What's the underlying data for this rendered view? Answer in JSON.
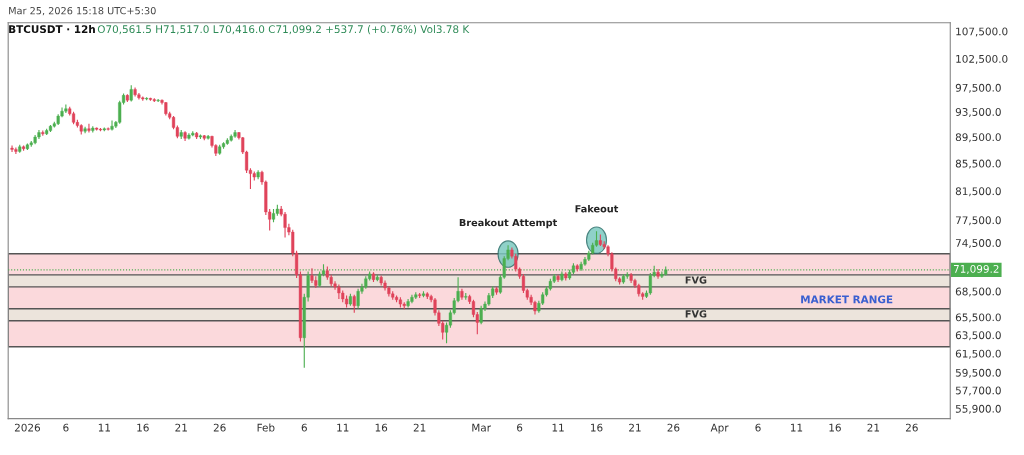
{
  "chart_data": {
    "type": "candlestick",
    "title": "BTCUSDT · 12h",
    "subtitle": "O70,561.5 H71,517.0 L70,416.0 C71,099.2 +537.7 (+0.76%) Vol3.78 K",
    "annotations": [
      "Mar 25, 2026 15:18 UTC+5:30",
      {
        "text": "Breakout Attempt",
        "x": "2026-03-04T12:00",
        "y": 74200
      },
      {
        "text": "Fakeout",
        "x": "2026-03-16T00:00",
        "y": 76000
      }
    ],
    "x": [
      "2025-12-30T00:00",
      "2025-12-30T12:00",
      "2025-12-31T00:00",
      "2025-12-31T12:00",
      "2026-01-01T00:00",
      "2026-01-01T12:00",
      "2026-01-02T00:00",
      "2026-01-02T12:00",
      "2026-01-03T00:00",
      "2026-01-03T12:00",
      "2026-01-04T00:00",
      "2026-01-04T12:00",
      "2026-01-05T00:00",
      "2026-01-05T12:00",
      "2026-01-06T00:00",
      "2026-01-06T12:00",
      "2026-01-07T00:00",
      "2026-01-07T12:00",
      "2026-01-08T00:00",
      "2026-01-08T12:00",
      "2026-01-09T00:00",
      "2026-01-09T12:00",
      "2026-01-10T00:00",
      "2026-01-10T12:00",
      "2026-01-11T00:00",
      "2026-01-11T12:00",
      "2026-01-12T00:00",
      "2026-01-12T12:00",
      "2026-01-13T00:00",
      "2026-01-13T12:00",
      "2026-01-14T00:00",
      "2026-01-14T12:00",
      "2026-01-15T00:00",
      "2026-01-15T12:00",
      "2026-01-16T00:00",
      "2026-01-16T12:00",
      "2026-01-17T00:00",
      "2026-01-17T12:00",
      "2026-01-18T00:00",
      "2026-01-18T12:00",
      "2026-01-19T00:00",
      "2026-01-19T12:00",
      "2026-01-20T00:00",
      "2026-01-20T12:00",
      "2026-01-21T00:00",
      "2026-01-21T12:00",
      "2026-01-22T00:00",
      "2026-01-22T12:00",
      "2026-01-23T00:00",
      "2026-01-23T12:00",
      "2026-01-24T00:00",
      "2026-01-24T12:00",
      "2026-01-25T00:00",
      "2026-01-25T12:00",
      "2026-01-26T00:00",
      "2026-01-26T12:00",
      "2026-01-27T00:00",
      "2026-01-27T12:00",
      "2026-01-28T00:00",
      "2026-01-28T12:00",
      "2026-01-29T00:00",
      "2026-01-29T12:00",
      "2026-01-30T00:00",
      "2026-01-30T12:00",
      "2026-01-31T00:00",
      "2026-01-31T12:00",
      "2026-02-01T00:00",
      "2026-02-01T12:00",
      "2026-02-02T00:00",
      "2026-02-02T12:00",
      "2026-02-03T00:00",
      "2026-02-03T12:00",
      "2026-02-04T00:00",
      "2026-02-04T12:00",
      "2026-02-05T00:00",
      "2026-02-05T12:00",
      "2026-02-06T00:00",
      "2026-02-06T12:00",
      "2026-02-07T00:00",
      "2026-02-07T12:00",
      "2026-02-08T00:00",
      "2026-02-08T12:00",
      "2026-02-09T00:00",
      "2026-02-09T12:00",
      "2026-02-10T00:00",
      "2026-02-10T12:00",
      "2026-02-11T00:00",
      "2026-02-11T12:00",
      "2026-02-12T00:00",
      "2026-02-12T12:00",
      "2026-02-13T00:00",
      "2026-02-13T12:00",
      "2026-02-14T00:00",
      "2026-02-14T12:00",
      "2026-02-15T00:00",
      "2026-02-15T12:00",
      "2026-02-16T00:00",
      "2026-02-16T12:00",
      "2026-02-17T00:00",
      "2026-02-17T12:00",
      "2026-02-18T00:00",
      "2026-02-18T12:00",
      "2026-02-19T00:00",
      "2026-02-19T12:00",
      "2026-02-20T00:00",
      "2026-02-20T12:00",
      "2026-02-21T00:00",
      "2026-02-21T12:00",
      "2026-02-22T00:00",
      "2026-02-22T12:00",
      "2026-02-23T00:00",
      "2026-02-23T12:00",
      "2026-02-24T00:00",
      "2026-02-24T12:00",
      "2026-02-25T00:00",
      "2026-02-25T12:00",
      "2026-02-26T00:00",
      "2026-02-26T12:00",
      "2026-02-27T00:00",
      "2026-02-27T12:00",
      "2026-02-28T00:00",
      "2026-02-28T12:00",
      "2026-03-01T00:00",
      "2026-03-01T12:00",
      "2026-03-02T00:00",
      "2026-03-02T12:00",
      "2026-03-03T00:00",
      "2026-03-03T12:00",
      "2026-03-04T00:00",
      "2026-03-04T12:00",
      "2026-03-05T00:00",
      "2026-03-05T12:00",
      "2026-03-06T00:00",
      "2026-03-06T12:00",
      "2026-03-07T00:00",
      "2026-03-07T12:00",
      "2026-03-08T00:00",
      "2026-03-08T12:00",
      "2026-03-09T00:00",
      "2026-03-09T12:00",
      "2026-03-10T00:00",
      "2026-03-10T12:00",
      "2026-03-11T00:00",
      "2026-03-11T12:00",
      "2026-03-12T00:00",
      "2026-03-12T12:00",
      "2026-03-13T00:00",
      "2026-03-13T12:00",
      "2026-03-14T00:00",
      "2026-03-14T12:00",
      "2026-03-15T00:00",
      "2026-03-15T12:00",
      "2026-03-16T00:00",
      "2026-03-16T12:00",
      "2026-03-17T00:00",
      "2026-03-17T12:00",
      "2026-03-18T00:00",
      "2026-03-18T12:00",
      "2026-03-19T00:00",
      "2026-03-19T12:00",
      "2026-03-20T00:00",
      "2026-03-20T12:00",
      "2026-03-21T00:00",
      "2026-03-21T12:00",
      "2026-03-22T00:00",
      "2026-03-22T12:00",
      "2026-03-23T00:00",
      "2026-03-23T12:00",
      "2026-03-24T00:00",
      "2026-03-24T12:00",
      "2026-03-25T00:00"
    ],
    "ohlc": [
      [
        87800,
        88200,
        87200,
        87600
      ],
      [
        87600,
        87900,
        86900,
        87300
      ],
      [
        87300,
        88300,
        87100,
        88000
      ],
      [
        88000,
        88200,
        87400,
        87700
      ],
      [
        87700,
        88500,
        87500,
        88300
      ],
      [
        88300,
        88900,
        88000,
        88600
      ],
      [
        88600,
        89800,
        88400,
        89500
      ],
      [
        89500,
        90600,
        89200,
        90200
      ],
      [
        90200,
        90500,
        89700,
        90000
      ],
      [
        90000,
        90800,
        89800,
        90500
      ],
      [
        90500,
        91400,
        90300,
        91200
      ],
      [
        91200,
        91900,
        91000,
        91600
      ],
      [
        91600,
        93100,
        91400,
        92800
      ],
      [
        92800,
        94200,
        92600,
        93600
      ],
      [
        93600,
        94700,
        93300,
        94000
      ],
      [
        94000,
        94300,
        92900,
        93200
      ],
      [
        93200,
        93500,
        91500,
        91800
      ],
      [
        91800,
        92200,
        91000,
        91300
      ],
      [
        91300,
        91500,
        89900,
        90400
      ],
      [
        90400,
        91100,
        90100,
        90800
      ],
      [
        90800,
        91600,
        90200,
        90500
      ],
      [
        90500,
        91200,
        90200,
        90900
      ],
      [
        90900,
        91000,
        90500,
        90700
      ],
      [
        90700,
        90900,
        90400,
        90600
      ],
      [
        90600,
        91000,
        90400,
        90800
      ],
      [
        90800,
        91000,
        90500,
        90700
      ],
      [
        90700,
        92100,
        90500,
        91200
      ],
      [
        91200,
        92000,
        90900,
        91800
      ],
      [
        91800,
        95300,
        91600,
        95000
      ],
      [
        95000,
        96500,
        94700,
        96200
      ],
      [
        96200,
        96400,
        95100,
        95400
      ],
      [
        95400,
        97900,
        95200,
        97200
      ],
      [
        97200,
        97500,
        96000,
        96300
      ],
      [
        96300,
        96600,
        95500,
        95800
      ],
      [
        95800,
        96000,
        95300,
        95600
      ],
      [
        95600,
        95900,
        95400,
        95700
      ],
      [
        95700,
        95800,
        95300,
        95500
      ],
      [
        95500,
        95700,
        95100,
        95300
      ],
      [
        95300,
        95600,
        95100,
        95400
      ],
      [
        95400,
        95500,
        94700,
        95000
      ],
      [
        95000,
        95100,
        92900,
        93200
      ],
      [
        93200,
        93500,
        92300,
        92600
      ],
      [
        92600,
        92800,
        90700,
        91000
      ],
      [
        91000,
        91300,
        89300,
        89600
      ],
      [
        89600,
        90600,
        89200,
        90200
      ],
      [
        90200,
        90400,
        88900,
        89300
      ],
      [
        89300,
        90100,
        89100,
        89800
      ],
      [
        89800,
        90400,
        89600,
        90100
      ],
      [
        90100,
        90300,
        89200,
        89500
      ],
      [
        89500,
        89900,
        89200,
        89700
      ],
      [
        89700,
        89800,
        89000,
        89300
      ],
      [
        89300,
        89800,
        89100,
        89600
      ],
      [
        89600,
        89700,
        87900,
        88200
      ],
      [
        88200,
        88400,
        86600,
        87000
      ],
      [
        87000,
        88300,
        86800,
        88000
      ],
      [
        88000,
        88700,
        87700,
        88500
      ],
      [
        88500,
        89300,
        88300,
        89000
      ],
      [
        89000,
        89900,
        88800,
        89600
      ],
      [
        89600,
        90600,
        89400,
        90200
      ],
      [
        90200,
        90300,
        89100,
        89400
      ],
      [
        89400,
        89500,
        86900,
        87200
      ],
      [
        87200,
        87400,
        84100,
        84500
      ],
      [
        84500,
        84800,
        81800,
        84000
      ],
      [
        84000,
        84300,
        83000,
        83500
      ],
      [
        83500,
        84500,
        83200,
        84200
      ],
      [
        84200,
        84400,
        82400,
        82800
      ],
      [
        82800,
        83000,
        78200,
        78600
      ],
      [
        78600,
        79000,
        76100,
        77600
      ],
      [
        77600,
        79000,
        77200,
        78400
      ],
      [
        78400,
        79600,
        78100,
        79000
      ],
      [
        79000,
        79400,
        78000,
        78300
      ],
      [
        78300,
        78600,
        75200,
        76500
      ],
      [
        76500,
        77000,
        75500,
        75900
      ],
      [
        75900,
        76200,
        72800,
        73200
      ],
      [
        73200,
        73500,
        70100,
        70500
      ],
      [
        70500,
        70900,
        62800,
        63200
      ],
      [
        63200,
        68200,
        60000,
        67800
      ],
      [
        67800,
        70900,
        67300,
        70400
      ],
      [
        70400,
        71300,
        69500,
        69800
      ],
      [
        69800,
        70300,
        68900,
        69200
      ],
      [
        69200,
        70900,
        69000,
        70600
      ],
      [
        70600,
        71800,
        70300,
        71000
      ],
      [
        71000,
        71500,
        69900,
        70200
      ],
      [
        70200,
        70500,
        69100,
        69400
      ],
      [
        69400,
        69700,
        68700,
        69000
      ],
      [
        69000,
        69300,
        67600,
        68300
      ],
      [
        68300,
        68600,
        67200,
        67600
      ],
      [
        67600,
        68000,
        66600,
        67000
      ],
      [
        67000,
        68200,
        66800,
        67900
      ],
      [
        67900,
        68100,
        66000,
        66800
      ],
      [
        66800,
        68800,
        66500,
        68500
      ],
      [
        68500,
        69400,
        68200,
        69000
      ],
      [
        69000,
        70300,
        68800,
        70000
      ],
      [
        70000,
        70900,
        69800,
        70600
      ],
      [
        70600,
        70800,
        69600,
        69900
      ],
      [
        69900,
        70500,
        69700,
        70200
      ],
      [
        70200,
        70400,
        69200,
        69500
      ],
      [
        69500,
        69800,
        68600,
        68900
      ],
      [
        68900,
        69100,
        67900,
        68200
      ],
      [
        68200,
        68500,
        67500,
        67800
      ],
      [
        67800,
        68000,
        67200,
        67500
      ],
      [
        67500,
        67800,
        66600,
        67000
      ],
      [
        67000,
        67200,
        66400,
        66800
      ],
      [
        66800,
        67600,
        66600,
        67300
      ],
      [
        67300,
        68100,
        67100,
        67800
      ],
      [
        67800,
        68400,
        67600,
        68100
      ],
      [
        68100,
        68300,
        67700,
        68000
      ],
      [
        68000,
        68500,
        67800,
        68200
      ],
      [
        68200,
        68400,
        67600,
        67900
      ],
      [
        67900,
        68100,
        67200,
        67500
      ],
      [
        67500,
        67700,
        65700,
        66000
      ],
      [
        66000,
        66300,
        64500,
        64800
      ],
      [
        64800,
        65100,
        63000,
        63800
      ],
      [
        63800,
        64900,
        62600,
        64600
      ],
      [
        64600,
        66300,
        64300,
        66000
      ],
      [
        66000,
        67700,
        65800,
        67400
      ],
      [
        67400,
        70200,
        67200,
        68500
      ],
      [
        68500,
        68800,
        67500,
        67800
      ],
      [
        67800,
        68300,
        67500,
        67900
      ],
      [
        67900,
        68100,
        67000,
        67300
      ],
      [
        67300,
        67500,
        65500,
        65800
      ],
      [
        65800,
        66100,
        63600,
        64900
      ],
      [
        64900,
        66800,
        64700,
        66500
      ],
      [
        66500,
        67300,
        66200,
        67000
      ],
      [
        67000,
        68300,
        66800,
        68000
      ],
      [
        68000,
        69100,
        67700,
        68800
      ],
      [
        68800,
        69000,
        68100,
        68400
      ],
      [
        68400,
        70500,
        68200,
        70200
      ],
      [
        70200,
        72800,
        70000,
        72500
      ],
      [
        72500,
        74200,
        72300,
        73600
      ],
      [
        73600,
        73900,
        72500,
        72800
      ],
      [
        72800,
        73100,
        70900,
        71200
      ],
      [
        71200,
        71400,
        70000,
        70300
      ],
      [
        70300,
        70600,
        68300,
        68600
      ],
      [
        68600,
        68800,
        67500,
        67800
      ],
      [
        67800,
        68100,
        66900,
        67200
      ],
      [
        67200,
        67400,
        65800,
        66200
      ],
      [
        66200,
        67400,
        66000,
        67100
      ],
      [
        67100,
        68400,
        66900,
        68100
      ],
      [
        68100,
        69100,
        67900,
        68800
      ],
      [
        68800,
        70000,
        68600,
        69700
      ],
      [
        69700,
        70600,
        69500,
        70300
      ],
      [
        70300,
        70500,
        69600,
        69900
      ],
      [
        69900,
        70900,
        69700,
        70600
      ],
      [
        70600,
        70800,
        69800,
        70100
      ],
      [
        70100,
        71100,
        69900,
        70800
      ],
      [
        70800,
        71900,
        70600,
        71600
      ],
      [
        71600,
        71800,
        70900,
        71200
      ],
      [
        71200,
        72100,
        71000,
        71800
      ],
      [
        71800,
        72700,
        71600,
        72400
      ],
      [
        72400,
        73500,
        72200,
        73200
      ],
      [
        73200,
        74500,
        73000,
        74200
      ],
      [
        74200,
        76000,
        74000,
        74800
      ],
      [
        74800,
        75600,
        74100,
        74300
      ],
      [
        74300,
        74700,
        73700,
        74000
      ],
      [
        74000,
        74200,
        72800,
        73100
      ],
      [
        73100,
        73300,
        70900,
        71200
      ],
      [
        71200,
        71400,
        69700,
        70000
      ],
      [
        70000,
        70200,
        69300,
        69600
      ],
      [
        69600,
        70600,
        69400,
        70300
      ],
      [
        70300,
        70800,
        70000,
        70500
      ],
      [
        70500,
        70700,
        69500,
        69800
      ],
      [
        69800,
        70000,
        68900,
        69200
      ],
      [
        69200,
        69400,
        67900,
        68200
      ],
      [
        68200,
        68400,
        67500,
        67900
      ],
      [
        67900,
        68600,
        67700,
        68300
      ],
      [
        68300,
        70700,
        68100,
        70400
      ],
      [
        70400,
        71600,
        70200,
        70800
      ],
      [
        70800,
        71200,
        70000,
        70300
      ],
      [
        70300,
        70900,
        70100,
        70561.5
      ],
      [
        70561.5,
        71517,
        70416,
        71099.2
      ]
    ],
    "log": "y",
    "xlim": [
      "2025-12-29T12:00",
      "2026-05-01"
    ],
    "xticks": [
      {
        "value": "2026-01-01",
        "label": "2026"
      },
      {
        "value": "2026-01-06",
        "label": "6"
      },
      {
        "value": "2026-01-11",
        "label": "11"
      },
      {
        "value": "2026-01-16",
        "label": "16"
      },
      {
        "value": "2026-01-21",
        "label": "21"
      },
      {
        "value": "2026-01-26",
        "label": "26"
      },
      {
        "value": "2026-02-01",
        "label": "Feb"
      },
      {
        "value": "2026-02-06",
        "label": "6"
      },
      {
        "value": "2026-02-11",
        "label": "11"
      },
      {
        "value": "2026-02-16",
        "label": "16"
      },
      {
        "value": "2026-02-21",
        "label": "21"
      },
      {
        "value": "2026-03-01",
        "label": "Mar"
      },
      {
        "value": "2026-03-06",
        "label": "6"
      },
      {
        "value": "2026-03-11",
        "label": "11"
      },
      {
        "value": "2026-03-16",
        "label": "16"
      },
      {
        "value": "2026-03-21",
        "label": "21"
      },
      {
        "value": "2026-03-26",
        "label": "26"
      },
      {
        "value": "2026-04-01",
        "label": "Apr"
      },
      {
        "value": "2026-04-06",
        "label": "6"
      },
      {
        "value": "2026-04-11",
        "label": "11"
      },
      {
        "value": "2026-04-16",
        "label": "16"
      },
      {
        "value": "2026-04-21",
        "label": "21"
      },
      {
        "value": "2026-04-26",
        "label": "26"
      }
    ],
    "ylim": [
      54940,
      109100
    ],
    "yticks": [
      {
        "value": 55900,
        "label": "55,900.0"
      },
      {
        "value": 57700,
        "label": "57,700.0"
      },
      {
        "value": 59500,
        "label": "59,500.0"
      },
      {
        "value": 61500,
        "label": "61,500.0"
      },
      {
        "value": 63500,
        "label": "63,500.0"
      },
      {
        "value": 65500,
        "label": "65,500.0"
      },
      {
        "value": 68500,
        "label": "68,500.0"
      },
      {
        "value": 74500,
        "label": "74,500.0"
      },
      {
        "value": 77500,
        "label": "77,500.0"
      },
      {
        "value": 81500,
        "label": "81,500.0"
      },
      {
        "value": 85500,
        "label": "85,500.0"
      },
      {
        "value": 89500,
        "label": "89,500.0"
      },
      {
        "value": 93500,
        "label": "93,500.0"
      },
      {
        "value": 97500,
        "label": "97,500.0"
      },
      {
        "value": 102500,
        "label": "102,500.0"
      },
      {
        "value": 107500,
        "label": "107,500.0"
      }
    ],
    "ref_lines": [
      {
        "axis": "y",
        "value": 71099.2,
        "label": "71,099.2",
        "color": "#4caf50",
        "line_style": "dotted"
      }
    ],
    "bands": [
      {
        "axis": "y",
        "from": 62230,
        "to": 73100,
        "label": "MARKET RANGE",
        "color": "#fbd9dc"
      },
      {
        "axis": "y",
        "from": 69030,
        "to": 70480,
        "label": "FVG",
        "color": "#ece4dc"
      },
      {
        "axis": "y",
        "from": 65090,
        "to": 66460,
        "label": "FVG",
        "color": "#ece4dc"
      }
    ],
    "grid": false
  }
}
